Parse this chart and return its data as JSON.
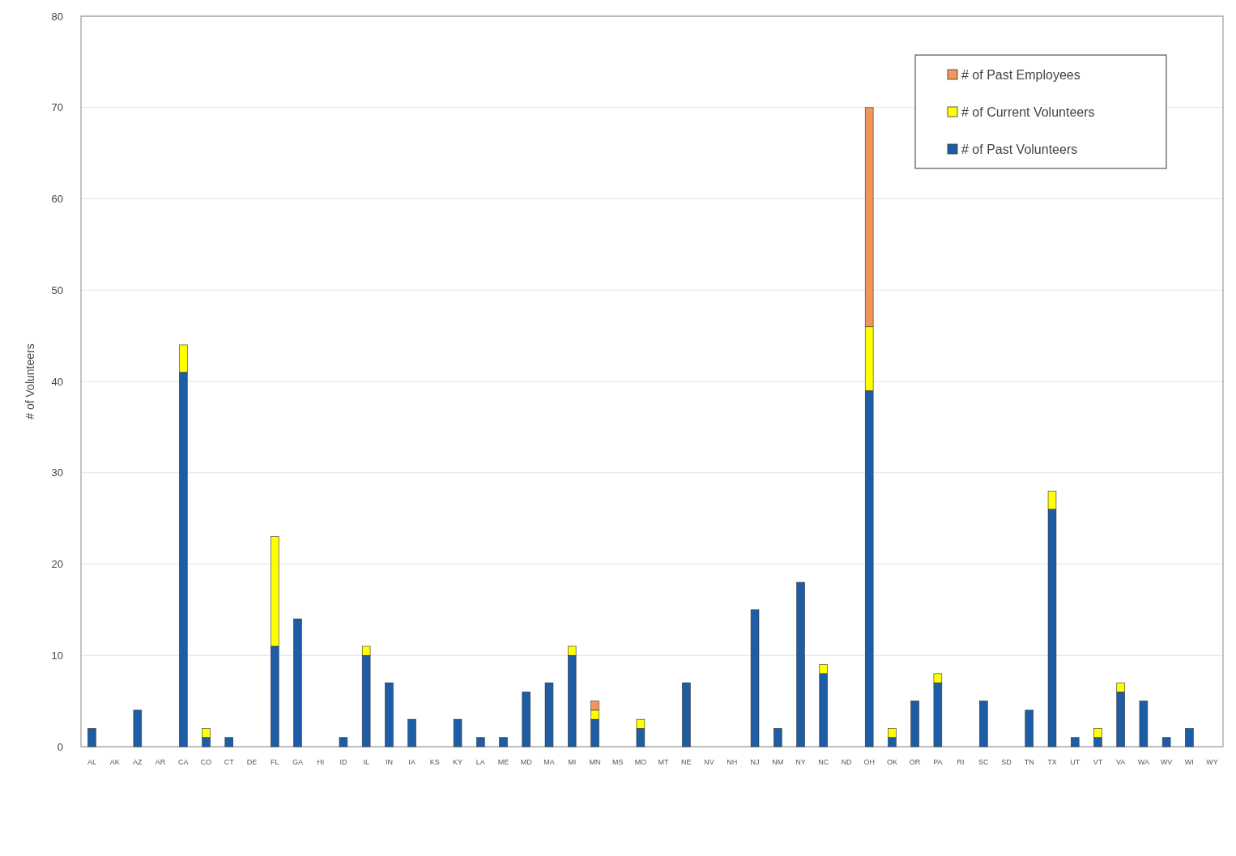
{
  "chart_data": {
    "type": "bar",
    "stacked": true,
    "ylabel": "# of Volunteers",
    "ylim": [
      0,
      80
    ],
    "yticks": [
      0,
      10,
      20,
      30,
      40,
      50,
      60,
      70,
      80
    ],
    "grid": "y",
    "legend": "top right",
    "categories": [
      "AL",
      "AK",
      "AZ",
      "AR",
      "CA",
      "CO",
      "CT",
      "DE",
      "FL",
      "GA",
      "HI",
      "ID",
      "IL",
      "IN",
      "IA",
      "KS",
      "KY",
      "LA",
      "ME",
      "MD",
      "MA",
      "MI",
      "MN",
      "MS",
      "MO",
      "MT",
      "NE",
      "NV",
      "NH",
      "NJ",
      "NM",
      "NY",
      "NC",
      "ND",
      "OH",
      "OK",
      "OR",
      "PA",
      "RI",
      "SC",
      "SD",
      "TN",
      "TX",
      "UT",
      "VT",
      "VA",
      "WA",
      "WV",
      "WI",
      "WY"
    ],
    "series": [
      {
        "name": "# of Past Volunteers",
        "color": "#1c5da6",
        "values": [
          2,
          0,
          4,
          0,
          41,
          1,
          1,
          0,
          11,
          14,
          0,
          1,
          10,
          7,
          3,
          0,
          3,
          1,
          1,
          6,
          7,
          10,
          3,
          0,
          2,
          0,
          7,
          0,
          0,
          15,
          2,
          18,
          8,
          0,
          39,
          1,
          5,
          7,
          0,
          5,
          0,
          4,
          26,
          1,
          1,
          6,
          5,
          1,
          2,
          0
        ]
      },
      {
        "name": "# of Current Volunteers",
        "color": "#ffff00",
        "values": [
          0,
          0,
          0,
          0,
          3,
          1,
          0,
          0,
          12,
          0,
          0,
          0,
          1,
          0,
          0,
          0,
          0,
          0,
          0,
          0,
          0,
          1,
          1,
          0,
          1,
          0,
          0,
          0,
          0,
          0,
          0,
          0,
          1,
          0,
          7,
          1,
          0,
          1,
          0,
          0,
          0,
          0,
          2,
          0,
          1,
          1,
          0,
          0,
          0,
          0
        ]
      },
      {
        "name": "# of Past Employees",
        "color": "#f0965a",
        "values": [
          0,
          0,
          0,
          0,
          0,
          0,
          0,
          0,
          0,
          0,
          0,
          0,
          0,
          0,
          0,
          0,
          0,
          0,
          0,
          0,
          0,
          0,
          1,
          0,
          0,
          0,
          0,
          0,
          0,
          0,
          0,
          0,
          0,
          0,
          24,
          0,
          0,
          0,
          0,
          0,
          0,
          0,
          0,
          0,
          0,
          0,
          0,
          0,
          0,
          0
        ]
      }
    ]
  }
}
